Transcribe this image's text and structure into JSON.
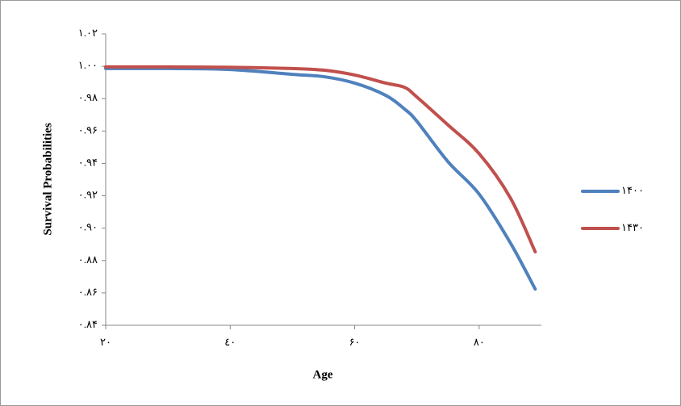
{
  "chart_data": {
    "type": "line",
    "x_label": "Age",
    "y_label": "Survival Probabilities",
    "x": [
      20,
      30,
      40,
      50,
      55,
      60,
      65,
      68,
      70,
      75,
      80,
      85,
      89
    ],
    "series": [
      {
        "name": "۱۴۰۰",
        "color": "#4f81bd",
        "values": [
          0.9986,
          0.9986,
          0.998,
          0.995,
          0.9936,
          0.9896,
          0.982,
          0.9736,
          0.966,
          0.941,
          0.921,
          0.891,
          0.8624
        ]
      },
      {
        "name": "۱۴۳۰",
        "color": "#c0504d",
        "values": [
          0.9996,
          0.9996,
          0.9994,
          0.9986,
          0.9976,
          0.9946,
          0.9896,
          0.987,
          0.981,
          0.9637,
          0.946,
          0.9188,
          0.8854
        ]
      }
    ],
    "xlim": [
      20,
      90
    ],
    "xticks": [
      {
        "value": 20,
        "label": "۲۰"
      },
      {
        "value": 40,
        "label": "٤۰"
      },
      {
        "value": 60,
        "label": "۶۰"
      },
      {
        "value": 80,
        "label": "۸۰"
      }
    ],
    "ylim": [
      0.84,
      1.02
    ],
    "yticks": [
      {
        "value": 0.84,
        "label": "۰.۸۴"
      },
      {
        "value": 0.86,
        "label": "۰.۸۶"
      },
      {
        "value": 0.88,
        "label": "۰.۸۸"
      },
      {
        "value": 0.9,
        "label": "۰.۹۰"
      },
      {
        "value": 0.92,
        "label": "۰.۹۲"
      },
      {
        "value": 0.94,
        "label": "۰.۹۴"
      },
      {
        "value": 0.96,
        "label": "۰.۹۶"
      },
      {
        "value": 0.98,
        "label": "۰.۹۸"
      },
      {
        "value": 1.0,
        "label": "۱.۰۰"
      },
      {
        "value": 1.02,
        "label": "۱.۰۲"
      }
    ],
    "legend": "right",
    "grid": false
  }
}
